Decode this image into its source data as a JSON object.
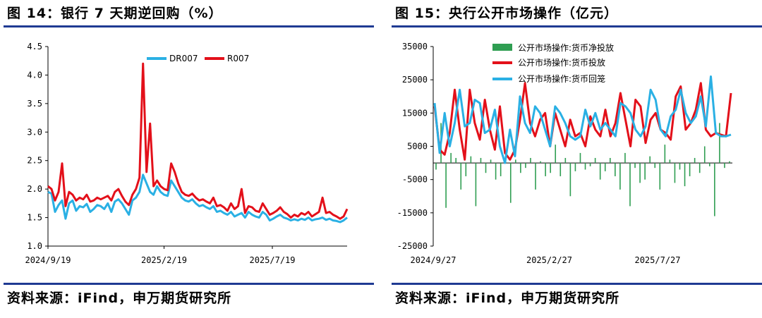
{
  "colors": {
    "rule": "#1f3a93",
    "dr007": "#2ab0e4",
    "r007": "#e3101a",
    "net_injection": "#2f9e52",
    "injection": "#e3101a",
    "withdrawal": "#2ab0e4"
  },
  "left": {
    "title": "图 14：银行 7 天期逆回购（%）",
    "source": "资料来源：iFind，申万期货研究所"
  },
  "right": {
    "title": "图 15：央行公开市场操作（亿元）",
    "source": "资料来源：iFind，申万期货研究所"
  },
  "chart_data": [
    {
      "type": "line",
      "ylim": [
        1.0,
        4.5
      ],
      "yticks": [
        "1.0",
        "1.5",
        "2.0",
        "2.5",
        "3.0",
        "3.5",
        "4.0",
        "4.5"
      ],
      "x_labels": [
        "2024/9/19",
        "2025/2/19",
        "2025/7/19"
      ],
      "x_label_positions": [
        0,
        0.388,
        0.75
      ],
      "legend_position": "top-right",
      "series": [
        {
          "name": "DR007",
          "values": [
            1.95,
            1.92,
            1.6,
            1.72,
            1.8,
            1.48,
            1.75,
            1.8,
            1.62,
            1.7,
            1.68,
            1.74,
            1.6,
            1.65,
            1.72,
            1.7,
            1.65,
            1.75,
            1.6,
            1.78,
            1.82,
            1.75,
            1.65,
            1.55,
            1.8,
            1.85,
            1.95,
            2.25,
            2.1,
            1.95,
            1.9,
            2.05,
            1.95,
            1.9,
            1.88,
            2.15,
            2.05,
            1.95,
            1.85,
            1.8,
            1.78,
            1.82,
            1.75,
            1.7,
            1.72,
            1.68,
            1.65,
            1.7,
            1.6,
            1.62,
            1.58,
            1.55,
            1.6,
            1.52,
            1.55,
            1.58,
            1.5,
            1.6,
            1.55,
            1.52,
            1.5,
            1.6,
            1.55,
            1.45,
            1.48,
            1.52,
            1.55,
            1.5,
            1.48,
            1.45,
            1.47,
            1.45,
            1.48,
            1.46,
            1.5,
            1.45,
            1.47,
            1.48,
            1.5,
            1.46,
            1.48,
            1.45,
            1.44,
            1.42,
            1.45,
            1.5
          ]
        },
        {
          "name": "R007",
          "values": [
            2.05,
            2.0,
            1.8,
            1.95,
            2.45,
            1.7,
            1.95,
            1.9,
            1.8,
            1.85,
            1.82,
            1.9,
            1.78,
            1.8,
            1.85,
            1.82,
            1.85,
            1.88,
            1.8,
            1.95,
            2.0,
            1.88,
            1.78,
            1.72,
            1.9,
            2.0,
            2.2,
            4.2,
            2.3,
            3.15,
            2.05,
            2.15,
            2.05,
            2.0,
            1.98,
            2.45,
            2.3,
            2.1,
            1.95,
            1.9,
            1.88,
            1.92,
            1.85,
            1.8,
            1.82,
            1.78,
            1.75,
            1.85,
            1.7,
            1.72,
            1.68,
            1.62,
            1.75,
            1.65,
            1.7,
            2.0,
            1.58,
            1.7,
            1.68,
            1.62,
            1.6,
            1.75,
            1.65,
            1.55,
            1.58,
            1.62,
            1.68,
            1.6,
            1.56,
            1.5,
            1.55,
            1.52,
            1.58,
            1.55,
            1.6,
            1.52,
            1.56,
            1.6,
            1.85,
            1.58,
            1.6,
            1.55,
            1.52,
            1.48,
            1.52,
            1.65
          ]
        }
      ]
    },
    {
      "type": "bar+line",
      "ylim": [
        -25000,
        35000
      ],
      "yticks": [
        "-25000",
        "-15000",
        "-5000",
        "5000",
        "15000",
        "25000",
        "35000"
      ],
      "x_labels": [
        "2024/9/27",
        "2025/2/27",
        "2025/7/27"
      ],
      "x_label_positions": [
        0,
        0.388,
        0.75
      ],
      "legend_position": "top-left",
      "bars": {
        "name": "公开市场操作:货币净投放",
        "values": [
          -2000,
          12000,
          -13500,
          3000,
          1500,
          -8000,
          -4000,
          2000,
          -13000,
          1500,
          -3000,
          1000,
          -5000,
          -4000,
          1500,
          -12000,
          1000,
          -3000,
          -1500,
          1500,
          -8000,
          500,
          -4000,
          -3000,
          5500,
          -4000,
          1500,
          -10000,
          -2500,
          3000,
          -2000,
          -1000,
          1500,
          -5000,
          -2500,
          1500,
          -4000,
          -8000,
          3000,
          -13000,
          -1500,
          -6000,
          -5000,
          2000,
          -1500,
          -8000,
          5500,
          1000,
          -6000,
          -2000,
          -7000,
          -4000,
          1500,
          -3000,
          5000,
          -1000,
          -16000,
          12000,
          -1500,
          500
        ]
      },
      "series": [
        {
          "name": "公开市场操作:货币投放",
          "values": [
            17000,
            4000,
            2500,
            9000,
            22000,
            10000,
            1000,
            22000,
            12000,
            7000,
            19000,
            10000,
            4000,
            17000,
            3000,
            1000,
            4000,
            13000,
            24000,
            12000,
            8000,
            13000,
            15000,
            5000,
            15000,
            10000,
            5000,
            13000,
            8000,
            9000,
            5000,
            14000,
            10000,
            8000,
            16000,
            8000,
            12000,
            21000,
            13000,
            5000,
            19000,
            17000,
            6000,
            13000,
            15000,
            10000,
            9000,
            7000,
            20000,
            23000,
            10000,
            12000,
            16000,
            24000,
            10000,
            8000,
            9000,
            8500,
            8000,
            21000
          ]
        },
        {
          "name": "公开市场操作:货币回笼",
          "values": [
            18000,
            3000,
            15000,
            5000,
            12000,
            22000,
            11000,
            12000,
            19000,
            18000,
            9000,
            10000,
            16000,
            5000,
            0,
            10000,
            2000,
            20000,
            12000,
            9000,
            17000,
            15000,
            10000,
            5000,
            17000,
            15000,
            12000,
            8000,
            7000,
            8000,
            16000,
            11000,
            15000,
            10000,
            12000,
            10000,
            8000,
            18000,
            17000,
            15000,
            10000,
            8000,
            11000,
            22000,
            19000,
            10000,
            8000,
            14000,
            16000,
            22000,
            15000,
            12000,
            14000,
            20000,
            11000,
            26000,
            9000,
            8000,
            8000,
            8500
          ]
        }
      ]
    }
  ]
}
